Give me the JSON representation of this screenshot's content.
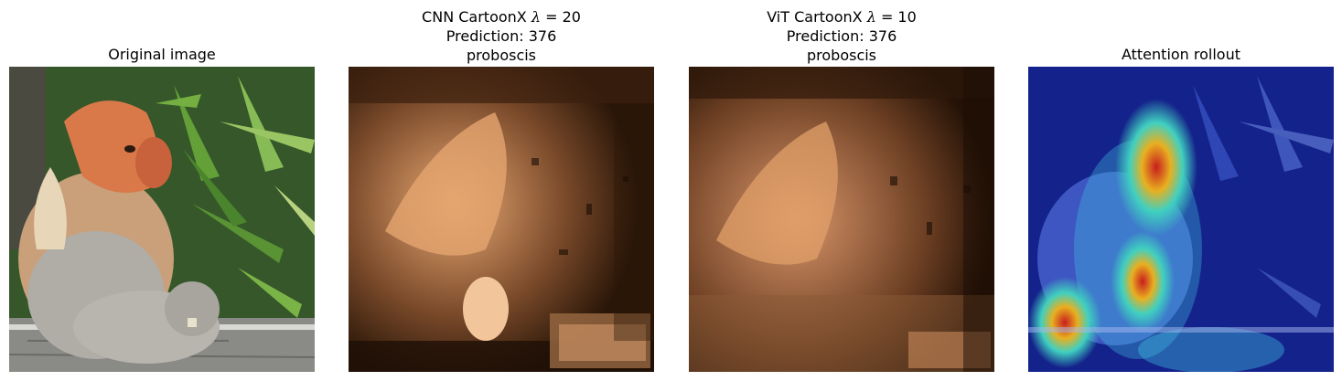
{
  "figure": {
    "panels": [
      {
        "title_lines": [
          "Original image"
        ],
        "image_description": "Proboscis monkey sitting on a wooden deck in front of green foliage"
      },
      {
        "title_prefix": "CNN CartoonX ",
        "lambda_symbol": "λ",
        "lambda_value": "= 20",
        "prediction": "Prediction: 376",
        "class_name": "proboscis"
      },
      {
        "title_prefix": "ViT CartoonX ",
        "lambda_symbol": "λ",
        "lambda_value": "= 10",
        "prediction": "Prediction: 376",
        "class_name": "proboscis"
      },
      {
        "title_lines": [
          "Attention rollout"
        ]
      }
    ]
  },
  "colors": {
    "copper_dark": "#1a0d05",
    "copper_light": "#f0b07a",
    "rollout_blue": "#1c2a9c",
    "rollout_red": "#c81e1e"
  }
}
